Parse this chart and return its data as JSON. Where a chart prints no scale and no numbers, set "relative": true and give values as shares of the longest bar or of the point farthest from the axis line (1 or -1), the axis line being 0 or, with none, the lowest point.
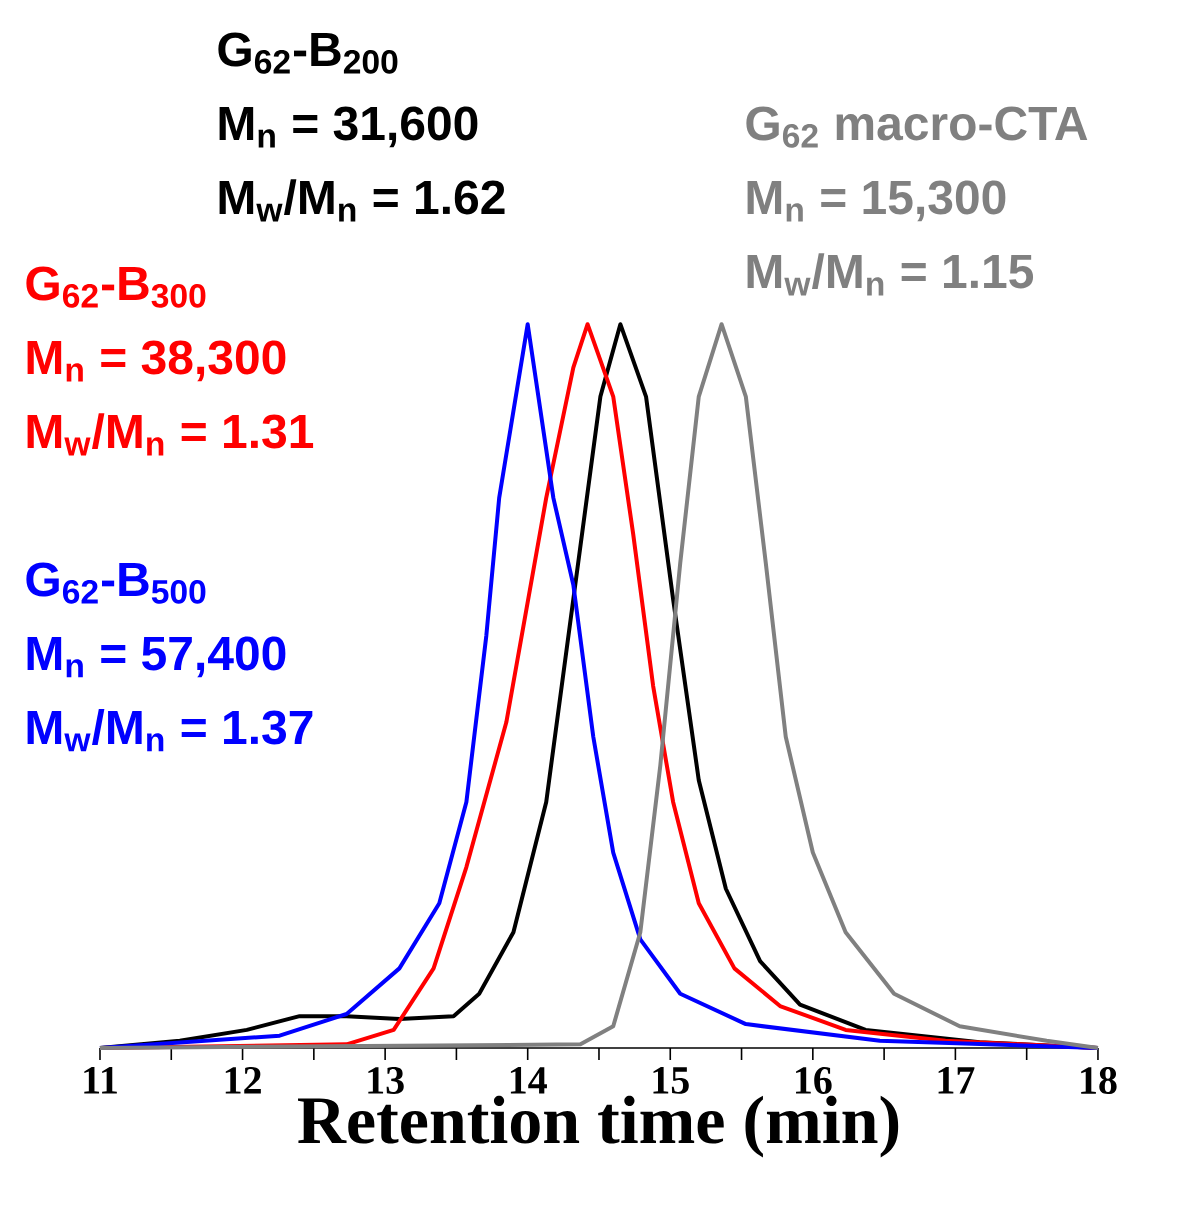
{
  "chart_data": {
    "type": "line",
    "relative": true,
    "xlabel": "Retention time (min)",
    "xlim": [
      11,
      18
    ],
    "xticks": [
      11,
      {
        "value": 11.5,
        "label": null
      },
      12,
      {
        "value": 12.5,
        "label": null
      },
      13,
      {
        "value": 13.5,
        "label": null
      },
      14,
      {
        "value": 14.5,
        "label": null
      },
      15,
      {
        "value": 15.5,
        "label": null
      },
      16,
      {
        "value": 16.5,
        "label": null
      },
      17,
      {
        "value": 17.5,
        "label": null
      },
      18
    ],
    "series": [
      {
        "name": "G$_{62}$-B$_{200}$",
        "color": "#000000",
        "x": [
          11,
          11.56,
          12.03,
          12.4,
          12.73,
          13.1,
          13.48,
          13.66,
          13.9,
          14.13,
          14.32,
          14.51,
          14.65,
          14.83,
          15.02,
          15.2,
          15.39,
          15.63,
          15.91,
          16.37,
          17.17,
          18
        ],
        "values": [
          0,
          0.01,
          0.025,
          0.044,
          0.044,
          0.04,
          0.044,
          0.075,
          0.16,
          0.34,
          0.62,
          0.9,
          1,
          0.9,
          0.62,
          0.37,
          0.22,
          0.12,
          0.06,
          0.025,
          0.008,
          0
        ]
      },
      {
        "name": "G$_{62}$-B$_{300}$",
        "color": "#ff0000",
        "x": [
          11,
          12.73,
          13.06,
          13.34,
          13.57,
          13.85,
          14.13,
          14.32,
          14.42,
          14.6,
          14.74,
          14.88,
          15.02,
          15.2,
          15.45,
          15.77,
          16.23,
          16.93,
          18
        ],
        "values": [
          0,
          0.005,
          0.025,
          0.11,
          0.25,
          0.45,
          0.76,
          0.94,
          1,
          0.9,
          0.71,
          0.5,
          0.34,
          0.2,
          0.11,
          0.058,
          0.025,
          0.01,
          0
        ]
      },
      {
        "name": "G$_{62}$-B$_{500}$",
        "color": "#0000ff",
        "x": [
          11,
          12.26,
          12.73,
          13.1,
          13.38,
          13.57,
          13.71,
          13.8,
          14.0,
          14.18,
          14.32,
          14.46,
          14.6,
          14.79,
          15.07,
          15.53,
          16.47,
          18
        ],
        "values": [
          0,
          0.017,
          0.047,
          0.11,
          0.2,
          0.34,
          0.57,
          0.76,
          1,
          0.76,
          0.64,
          0.43,
          0.27,
          0.15,
          0.075,
          0.033,
          0.01,
          0
        ]
      },
      {
        "name": "G$_{62}$ macro-CTA",
        "color": "#808080",
        "x": [
          11,
          14.37,
          14.6,
          14.79,
          14.93,
          15.07,
          15.2,
          15.36,
          15.53,
          15.67,
          15.81,
          16.0,
          16.23,
          16.57,
          17.03,
          17.64,
          18
        ],
        "values": [
          0,
          0.005,
          0.03,
          0.16,
          0.39,
          0.67,
          0.9,
          1,
          0.9,
          0.67,
          0.43,
          0.27,
          0.16,
          0.075,
          0.03,
          0.01,
          0
        ]
      }
    ],
    "annotations": [
      "M$_{n}$ = 31,600",
      "M$_{w}$/M$_{n}$ = 1.62",
      "M$_{n}$ = 38,300",
      "M$_{w}$/M$_{n}$ = 1.31",
      "M$_{n}$ = 57,400",
      "M$_{w}$/M$_{n}$ = 1.37",
      "M$_{n}$ = 15,300",
      "M$_{w}$/M$_{n}$ = 1.15"
    ],
    "marker": "none",
    "line_style": "solid"
  }
}
